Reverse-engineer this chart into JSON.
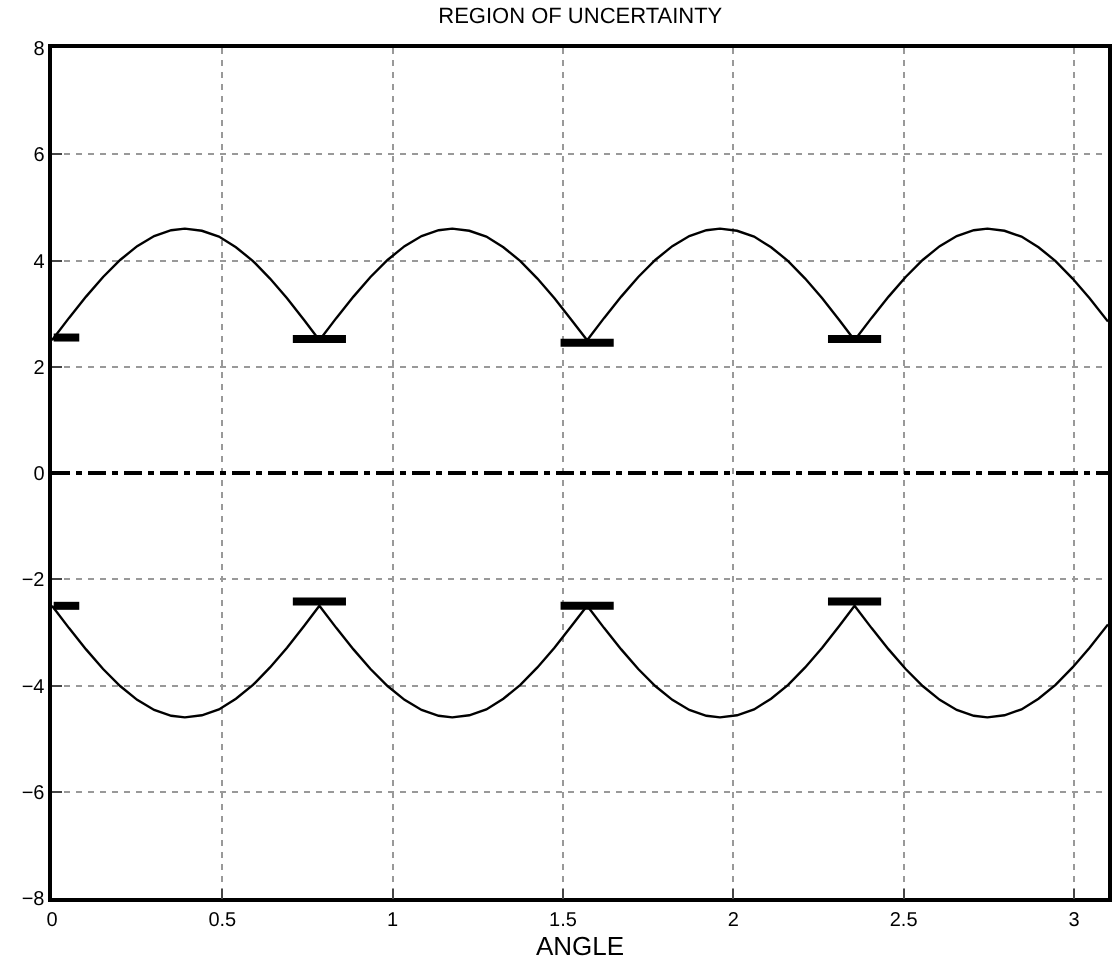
{
  "chart_data": {
    "type": "line",
    "title": "REGION OF UNCERTAINTY",
    "xlabel": "ANGLE",
    "xlim": [
      0,
      3.1
    ],
    "xticks": [
      0,
      0.5,
      1,
      1.5,
      2,
      2.5,
      3
    ],
    "ylim": [
      -8,
      8
    ],
    "yticks": [
      -8,
      -6,
      -4,
      -2,
      0,
      2,
      4,
      6,
      8
    ],
    "grid": true,
    "marker": "none",
    "series": [
      {
        "color": "#000000",
        "x": [
          0,
          0.05,
          0.1,
          0.15,
          0.2,
          0.25,
          0.3,
          0.35,
          0.39,
          0.44,
          0.49,
          0.54,
          0.59,
          0.64,
          0.69,
          0.74,
          0.785,
          0.835,
          0.885,
          0.935,
          0.985,
          1.035,
          1.085,
          1.135,
          1.175,
          1.225,
          1.275,
          1.325,
          1.375,
          1.425,
          1.475,
          1.525,
          1.571,
          1.621,
          1.671,
          1.721,
          1.771,
          1.821,
          1.871,
          1.921,
          1.961,
          2.011,
          2.061,
          2.111,
          2.161,
          2.211,
          2.261,
          2.311,
          2.356,
          2.406,
          2.456,
          2.506,
          2.556,
          2.606,
          2.656,
          2.706,
          2.746,
          2.796,
          2.846,
          2.896,
          2.946,
          2.996,
          3.046,
          3.1
        ],
        "values": [
          2.5,
          2.92,
          3.32,
          3.69,
          4.01,
          4.27,
          4.46,
          4.57,
          4.6,
          4.56,
          4.45,
          4.25,
          3.99,
          3.66,
          3.29,
          2.88,
          2.5,
          2.92,
          3.32,
          3.69,
          4.01,
          4.27,
          4.46,
          4.57,
          4.6,
          4.56,
          4.45,
          4.25,
          3.99,
          3.66,
          3.29,
          2.88,
          2.5,
          2.92,
          3.32,
          3.69,
          4.01,
          4.27,
          4.46,
          4.57,
          4.6,
          4.56,
          4.45,
          4.25,
          3.99,
          3.66,
          3.29,
          2.88,
          2.5,
          2.92,
          3.32,
          3.69,
          4.01,
          4.27,
          4.46,
          4.57,
          4.6,
          4.56,
          4.45,
          4.25,
          3.99,
          3.66,
          3.29,
          2.85
        ]
      },
      {
        "color": "#000000",
        "x": [
          0,
          0.05,
          0.1,
          0.15,
          0.2,
          0.25,
          0.3,
          0.35,
          0.39,
          0.44,
          0.49,
          0.54,
          0.59,
          0.64,
          0.69,
          0.74,
          0.785,
          0.835,
          0.885,
          0.935,
          0.985,
          1.035,
          1.085,
          1.135,
          1.175,
          1.225,
          1.275,
          1.325,
          1.375,
          1.425,
          1.475,
          1.525,
          1.571,
          1.621,
          1.671,
          1.721,
          1.771,
          1.821,
          1.871,
          1.921,
          1.961,
          2.011,
          2.061,
          2.111,
          2.161,
          2.211,
          2.261,
          2.311,
          2.356,
          2.406,
          2.456,
          2.506,
          2.556,
          2.606,
          2.656,
          2.706,
          2.746,
          2.796,
          2.846,
          2.896,
          2.946,
          2.996,
          3.046,
          3.1
        ],
        "values": [
          -2.5,
          -2.92,
          -3.32,
          -3.69,
          -4.01,
          -4.27,
          -4.46,
          -4.57,
          -4.6,
          -4.56,
          -4.45,
          -4.25,
          -3.99,
          -3.66,
          -3.29,
          -2.88,
          -2.5,
          -2.92,
          -3.32,
          -3.69,
          -4.01,
          -4.27,
          -4.46,
          -4.57,
          -4.6,
          -4.56,
          -4.45,
          -4.25,
          -3.99,
          -3.66,
          -3.29,
          -2.88,
          -2.5,
          -2.92,
          -3.32,
          -3.69,
          -4.01,
          -4.27,
          -4.46,
          -4.57,
          -4.6,
          -4.56,
          -4.45,
          -4.25,
          -3.99,
          -3.66,
          -3.29,
          -2.88,
          -2.5,
          -2.92,
          -3.32,
          -3.69,
          -4.01,
          -4.27,
          -4.46,
          -4.57,
          -4.6,
          -4.56,
          -4.45,
          -4.25,
          -3.99,
          -3.66,
          -3.29,
          -2.85
        ]
      },
      {
        "type": "step",
        "color": "#000000",
        "x": [
          0.005,
          0.08
        ],
        "values": [
          2.55,
          2.55
        ]
      },
      {
        "type": "step",
        "color": "#000000",
        "x": [
          0.707,
          0.863
        ],
        "values": [
          2.52,
          2.52
        ]
      },
      {
        "type": "step",
        "color": "#000000",
        "x": [
          1.493,
          1.649
        ],
        "values": [
          2.45,
          2.45
        ]
      },
      {
        "type": "step",
        "color": "#000000",
        "x": [
          2.278,
          2.434
        ],
        "values": [
          2.52,
          2.52
        ]
      },
      {
        "type": "step",
        "color": "#000000",
        "x": [
          0.005,
          0.08
        ],
        "values": [
          -2.5,
          -2.5
        ]
      },
      {
        "type": "step",
        "color": "#000000",
        "x": [
          0.707,
          0.863
        ],
        "values": [
          -2.42,
          -2.42
        ]
      },
      {
        "type": "step",
        "color": "#000000",
        "x": [
          1.493,
          1.649
        ],
        "values": [
          -2.5,
          -2.5
        ]
      },
      {
        "type": "step",
        "color": "#000000",
        "x": [
          2.278,
          2.434
        ],
        "values": [
          -2.42,
          -2.42
        ]
      }
    ],
    "ref_lines": [
      {
        "axis": "y",
        "value": 0,
        "color": "#000000",
        "line_style": "dashdot"
      }
    ]
  }
}
